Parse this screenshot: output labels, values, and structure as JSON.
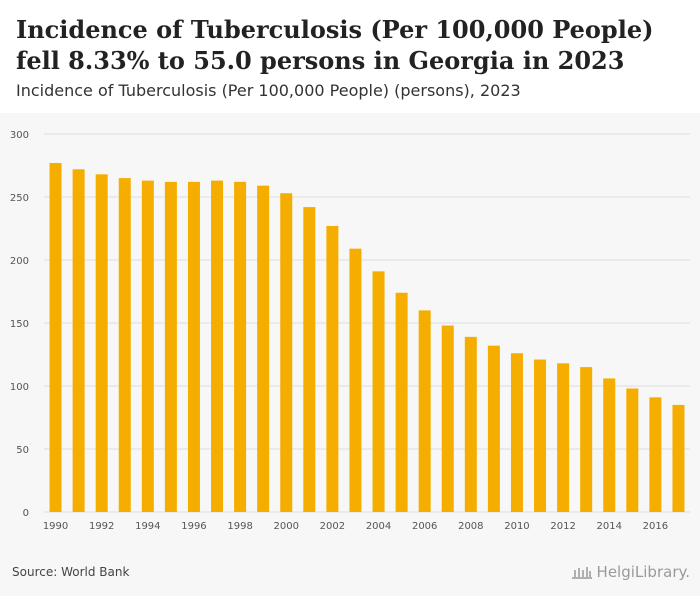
{
  "header": {
    "title": "Incidence of Tuberculosis (Per 100,000 People) fell 8.33% to 55.0 persons in Georgia in 2023",
    "subtitle": "Incidence of Tuberculosis (Per 100,000 People) (persons), 2023"
  },
  "footer": {
    "source": "Source: World Bank",
    "brand": "HelgiLibrary."
  },
  "colors": {
    "bar": "#f5ad00",
    "grid": "#dedede",
    "axis_text": "#555555"
  },
  "chart_data": {
    "type": "bar",
    "title": "Incidence of Tuberculosis (Per 100,000 People) (persons), 2023",
    "xlabel": "",
    "ylabel": "",
    "categories": [
      "1990",
      "1991",
      "1992",
      "1993",
      "1994",
      "1995",
      "1996",
      "1997",
      "1998",
      "1999",
      "2000",
      "2001",
      "2002",
      "2003",
      "2004",
      "2005",
      "2006",
      "2007",
      "2008",
      "2009",
      "2010",
      "2011",
      "2012",
      "2013",
      "2014",
      "2015",
      "2016",
      "2017"
    ],
    "x_tick_labels": [
      "1990",
      "1992",
      "1994",
      "1996",
      "1998",
      "2000",
      "2002",
      "2004",
      "2006",
      "2008",
      "2010",
      "2012",
      "2014",
      "2016"
    ],
    "values": [
      277,
      272,
      268,
      265,
      263,
      262,
      262,
      263,
      262,
      259,
      253,
      242,
      227,
      209,
      191,
      174,
      160,
      148,
      139,
      132,
      126,
      121,
      118,
      115,
      106,
      98,
      91,
      85
    ],
    "y_ticks": [
      0,
      50,
      100,
      150,
      200,
      250,
      300
    ],
    "ylim": [
      0,
      300
    ],
    "grid": true,
    "legend": "none"
  }
}
